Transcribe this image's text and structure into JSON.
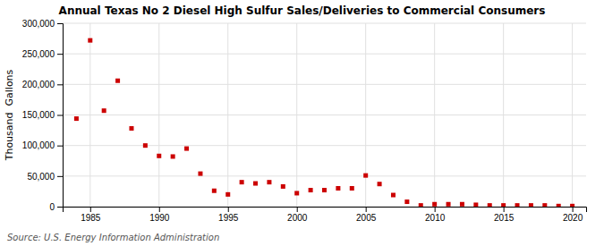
{
  "chart_data": {
    "type": "scatter",
    "title": "Annual Texas No 2 Diesel High Sulfur Sales/Deliveries to Commercial Consumers",
    "y_label": "Thousand  Gallons",
    "annotation": "Source: U.S. Energy Information Administration",
    "x": [
      1984,
      1985,
      1986,
      1987,
      1988,
      1989,
      1990,
      1991,
      1992,
      1993,
      1994,
      1995,
      1996,
      1997,
      1998,
      1999,
      2000,
      2001,
      2002,
      2003,
      2004,
      2005,
      2006,
      2007,
      2008,
      2009,
      2010,
      2011,
      2012,
      2013,
      2014,
      2015,
      2016,
      2017,
      2018,
      2019,
      2020
    ],
    "values": [
      144000,
      272000,
      157000,
      206000,
      128000,
      100000,
      83000,
      82000,
      95000,
      54000,
      26000,
      20000,
      40000,
      38000,
      40000,
      33000,
      22000,
      27000,
      27000,
      30000,
      30000,
      51000,
      37000,
      19000,
      8000,
      2000,
      4000,
      4000,
      4000,
      3000,
      2000,
      2000,
      2000,
      2000,
      2000,
      1000,
      1000
    ],
    "color": "#cc0000",
    "marker": "square",
    "xlim": [
      1983,
      2021
    ],
    "xticks": [
      1985,
      1990,
      1995,
      2000,
      2005,
      2010,
      2015,
      2020
    ],
    "ylim": [
      0,
      300000
    ],
    "yticks": [
      0,
      {
        "value": 50000,
        "label": "50,000"
      },
      {
        "value": 100000,
        "label": "100,000"
      },
      {
        "value": 150000,
        "label": "150,000"
      },
      {
        "value": 200000,
        "label": "200,000"
      },
      {
        "value": 250000,
        "label": "250,000"
      },
      {
        "value": 300000,
        "label": "300,000"
      }
    ],
    "grid": true
  }
}
